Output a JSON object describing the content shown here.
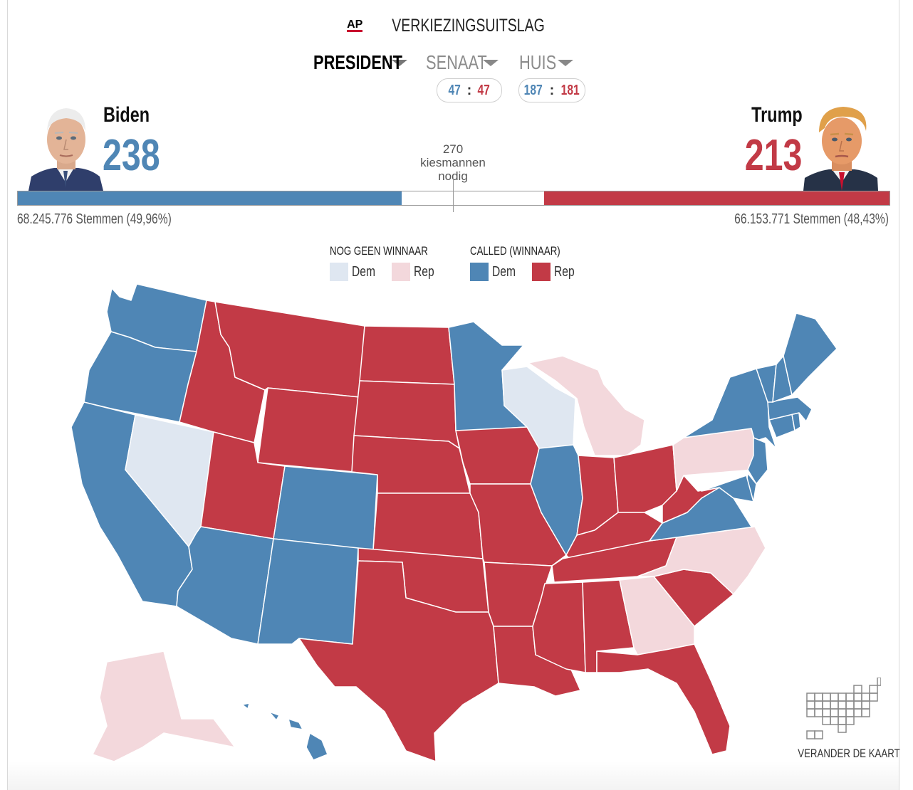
{
  "header": {
    "logo": "AP",
    "title": "VERKIEZINGSUITSLAG"
  },
  "tabs": [
    {
      "label": "PRESIDENT",
      "active": true
    },
    {
      "label": "SENAAT",
      "dem": "47",
      "rep": "47"
    },
    {
      "label": "HUIS",
      "dem": "187",
      "rep": "181"
    }
  ],
  "candidates": {
    "dem": {
      "name": "Biden",
      "electoral_votes": "238",
      "popular_vote": "68.245.776 Stemmen (49,96%)",
      "ev_fraction": 0.4405
    },
    "rep": {
      "name": "Trump",
      "electoral_votes": "213",
      "popular_vote": "66.153.771 Stemmen (48,43%)",
      "ev_fraction": 0.3959
    }
  },
  "needed": {
    "number": "270",
    "line1": "kiesmannen",
    "line2": "nodig"
  },
  "legend": {
    "no_winner_title": "NOG GEEN WINNAAR",
    "called_title": "CALLED (WINNAAR)",
    "dem_label": "Dem",
    "rep_label": "Rep"
  },
  "colors": {
    "dem_called": "#4f86b5",
    "rep_called": "#c23a46",
    "dem_lean": "#dfe7f1",
    "rep_lean": "#f3d8dc"
  },
  "states": {
    "WA": "dem_called",
    "OR": "dem_called",
    "CA": "dem_called",
    "NV": "dem_lean",
    "ID": "rep_called",
    "MT": "rep_called",
    "WY": "rep_called",
    "UT": "rep_called",
    "AZ": "dem_called",
    "CO": "dem_called",
    "NM": "dem_called",
    "ND": "rep_called",
    "SD": "rep_called",
    "NE": "rep_called",
    "KS": "rep_called",
    "OK": "rep_called",
    "TX": "rep_called",
    "MN": "dem_called",
    "IA": "rep_called",
    "MO": "rep_called",
    "AR": "rep_called",
    "LA": "rep_called",
    "WI": "dem_lean",
    "IL": "dem_called",
    "MI": "rep_lean",
    "IN": "rep_called",
    "KY": "rep_called",
    "TN": "rep_called",
    "MS": "rep_called",
    "AL": "rep_called",
    "OH": "rep_called",
    "WV": "rep_called",
    "VA": "dem_called",
    "NC": "rep_lean",
    "SC": "rep_called",
    "GA": "rep_lean",
    "FL": "rep_called",
    "PA": "rep_lean",
    "NY": "dem_called",
    "NJ": "dem_called",
    "DE": "dem_called",
    "MD": "dem_called",
    "CT": "dem_called",
    "RI": "dem_called",
    "MA": "dem_called",
    "VT": "dem_called",
    "NH": "dem_called",
    "ME": "dem_called",
    "AK": "rep_lean",
    "HI": "dem_called"
  },
  "change_map": {
    "label": "VERANDER DE KAART",
    "icon": "tile-grid-map-icon"
  }
}
